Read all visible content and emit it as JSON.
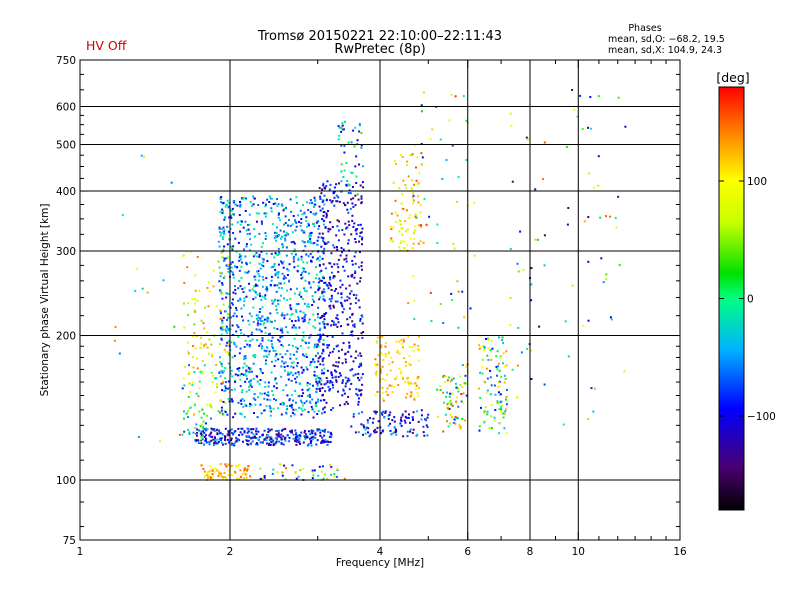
{
  "chart_data": {
    "type": "scatter",
    "title": "Tromsø 20150221 22:10:00–22:11:43",
    "subtitle": "RwPretec (8p)",
    "status_label": "HV Off",
    "xlabel": "Frequency [MHz]",
    "ylabel": "Stationary phase Virtual Height [km]",
    "x_scale": "log",
    "y_scale": "log",
    "xlim": [
      1,
      16
    ],
    "ylim": [
      75,
      750
    ],
    "x_ticks": [
      1,
      2,
      4,
      6,
      8,
      10,
      16
    ],
    "x_tick_labels": [
      "1",
      "2",
      "4",
      "6",
      "8",
      "10",
      "16"
    ],
    "y_ticks": [
      75,
      100,
      200,
      300,
      400,
      500,
      600,
      750
    ],
    "y_tick_labels": [
      "75",
      "100",
      "200",
      "300",
      "400",
      "500",
      "600",
      "750"
    ],
    "x_gridlines": [
      2,
      4,
      6,
      8,
      10
    ],
    "y_gridlines": [
      100,
      200,
      300,
      400,
      500,
      600
    ],
    "stats": {
      "heading": "Phases",
      "line1": "mean, sd,O: −68.2, 19.5",
      "line2": "mean, sd,X: 104.9, 24.3"
    },
    "colorbar": {
      "label": "[deg]",
      "range": [
        -180,
        180
      ],
      "ticks": [
        100,
        0,
        -100
      ],
      "tick_labels": [
        "100",
        "0",
        "−100"
      ]
    },
    "clusters": [
      {
        "x": [
          1.7,
          3.2
        ],
        "y": [
          118,
          128
        ],
        "phase": [
          -150,
          -40
        ],
        "n": 330
      },
      {
        "x": [
          3.5,
          5.0
        ],
        "y": [
          123,
          140
        ],
        "phase": [
          -150,
          -30
        ],
        "n": 110
      },
      {
        "x": [
          1.75,
          2.2
        ],
        "y": [
          100,
          108
        ],
        "phase": [
          90,
          160
        ],
        "n": 75
      },
      {
        "x": [
          2.3,
          3.4
        ],
        "y": [
          100,
          108
        ],
        "phase": [
          -130,
          150
        ],
        "n": 45
      },
      {
        "x": [
          1.9,
          3.1
        ],
        "y": [
          135,
          390
        ],
        "phase": [
          -110,
          0
        ],
        "n": 1100
      },
      {
        "x": [
          3.0,
          3.7
        ],
        "y": [
          140,
          420
        ],
        "phase": [
          -150,
          -60
        ],
        "n": 450
      },
      {
        "x": [
          3.3,
          3.7
        ],
        "y": [
          390,
          560
        ],
        "phase": [
          -120,
          40
        ],
        "n": 45
      },
      {
        "x": [
          3.9,
          4.8
        ],
        "y": [
          145,
          200
        ],
        "phase": [
          80,
          150
        ],
        "n": 110
      },
      {
        "x": [
          4.2,
          4.9
        ],
        "y": [
          300,
          490
        ],
        "phase": [
          60,
          160
        ],
        "n": 85
      },
      {
        "x": [
          1.6,
          2.0
        ],
        "y": [
          135,
          300
        ],
        "phase": [
          40,
          150
        ],
        "n": 110
      },
      {
        "x": [
          1.6,
          1.9
        ],
        "y": [
          120,
          175
        ],
        "phase": [
          -90,
          80
        ],
        "n": 50
      },
      {
        "x": [
          5.2,
          6.0
        ],
        "y": [
          125,
          175
        ],
        "phase": [
          -100,
          170
        ],
        "n": 75
      },
      {
        "x": [
          6.3,
          7.2
        ],
        "y": [
          125,
          200
        ],
        "phase": [
          -110,
          140
        ],
        "n": 110
      },
      {
        "x": [
          7.3,
          8.6
        ],
        "y": [
          140,
          590
        ],
        "phase": [
          -160,
          160
        ],
        "n": 35
      },
      {
        "x": [
          9.2,
          12.5
        ],
        "y": [
          120,
          650
        ],
        "phase": [
          -150,
          170
        ],
        "n": 45
      },
      {
        "x": [
          1.1,
          1.6
        ],
        "y": [
          120,
          520
        ],
        "phase": [
          -140,
          160
        ],
        "n": 16
      },
      {
        "x": [
          4.5,
          6.2
        ],
        "y": [
          200,
          650
        ],
        "phase": [
          -110,
          170
        ],
        "n": 55
      }
    ]
  }
}
